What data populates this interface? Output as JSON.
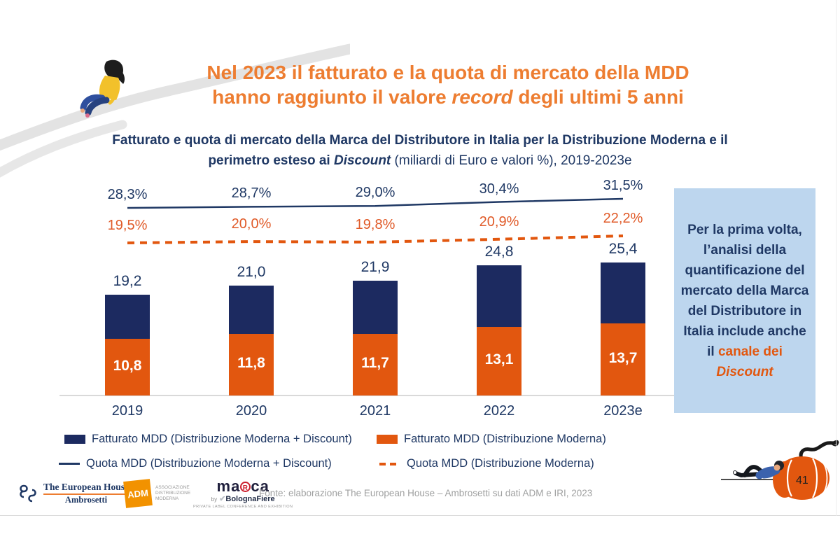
{
  "slide": {
    "title": {
      "line1": "Nel 2023 il fatturato e la quota di mercato della MDD",
      "line2_pre": "hanno raggiunto il valore ",
      "line2_italic": "record",
      "line2_post": " degli ultimi 5 anni"
    },
    "subtitle": {
      "line1": "Fatturato e quota di mercato della Marca del Distributore in Italia per la Distribuzione Moderna e il",
      "line2_pre": "perimetro esteso ai ",
      "line2_italic": "Discount",
      "line2_post": " (miliardi di Euro e valori %), 2019-2023e"
    },
    "page_number": "41"
  },
  "chart_data": {
    "type": "combo: stacked bar + line",
    "title": "Fatturato e quota di mercato della Marca del Distributore in Italia per la Distribuzione Moderna e il perimetro esteso ai Discount (miliardi di Euro e valori %), 2019-2023e",
    "categories": [
      "2019",
      "2020",
      "2021",
      "2022",
      "2023e"
    ],
    "series": [
      {
        "name": "Fatturato MDD (Distribuzione Moderna + Discount)",
        "type": "bar-stack-total",
        "color": "#1C2A60",
        "values": [
          19.2,
          21.0,
          21.9,
          24.8,
          25.4
        ],
        "unit": "mld €"
      },
      {
        "name": "Fatturato MDD (Distribuzione Moderna)",
        "type": "bar-stack-bottom",
        "color": "#E2570F",
        "values": [
          10.8,
          11.8,
          11.7,
          13.1,
          13.7
        ],
        "unit": "mld €"
      },
      {
        "name": "Quota MDD (Distribuzione Moderna + Discount)",
        "type": "line",
        "style": "solid",
        "color": "#1F3864",
        "values": [
          28.3,
          28.7,
          29.0,
          30.4,
          31.5
        ],
        "unit": "%"
      },
      {
        "name": "Quota MDD (Distribuzione Moderna)",
        "type": "line",
        "style": "dashed",
        "color": "#E2570F",
        "values": [
          19.5,
          20.0,
          19.8,
          20.9,
          22.2
        ],
        "unit": "%"
      }
    ],
    "value_format": "comma-decimal",
    "bar_axis_range": [
      0,
      27
    ],
    "grid": false,
    "legend_position": "bottom"
  },
  "info_box": {
    "text_main": "Per la prima volta, l’analisi della quantificazione del mercato della Marca del Distributore in Italia include anche il ",
    "highlight": "canale dei ",
    "highlight_italic": "Discount",
    "background": "#BDD6EE"
  },
  "footer": {
    "ambrosetti_line1": "The European House",
    "ambrosetti_line2": "Ambrosetti",
    "adm_label": "ADM",
    "adm_caption1": "ASSOCIAZIONE",
    "adm_caption2": "DISTRIBUZIONE MODERNA",
    "marca_pre": "ma",
    "marca_r": "R",
    "marca_post": "ca",
    "marca_by": "by",
    "marca_bolognafiere": "BolognaFiere",
    "marca_caption": "PRIVATE LABEL CONFERENCE AND EXHIBITION",
    "source": "Fonte: elaborazione The European House – Ambrosetti su dati ADM e IRI, 2023"
  },
  "illustrations": [
    "road-ribbon",
    "sitting-person",
    "lying-person",
    "pumpkin"
  ],
  "colors": {
    "title_orange": "#ED7D31",
    "navy_bar": "#1C2A60",
    "navy_text": "#1F3864",
    "orange": "#E2570F",
    "box_blue": "#BDD6EE",
    "source_gray": "#9FA0A0"
  }
}
